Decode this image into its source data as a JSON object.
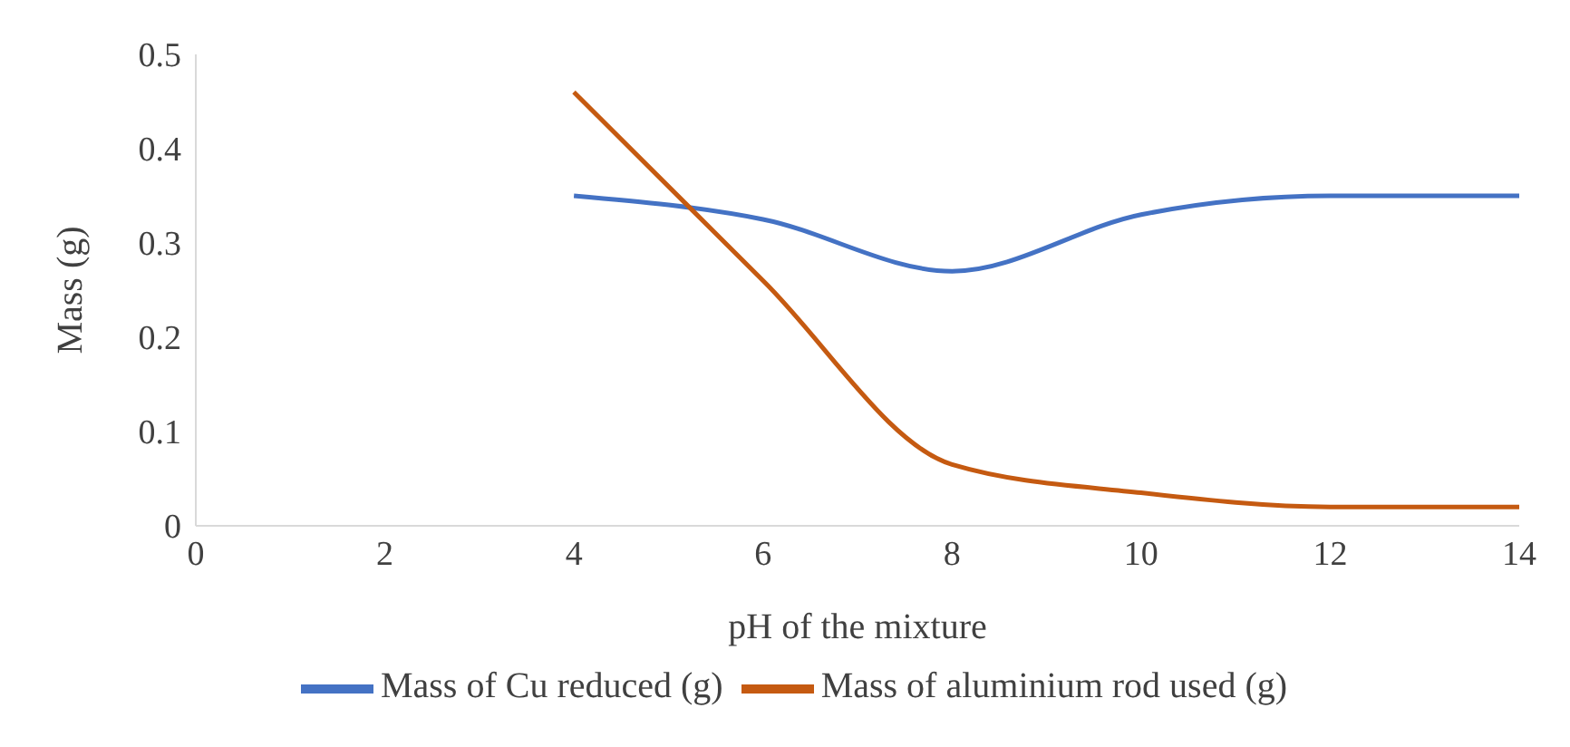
{
  "chart_data": {
    "type": "line",
    "xlabel": "pH of the mixture",
    "ylabel": "Mass (g)",
    "x": [
      4,
      6,
      8,
      10,
      12,
      14
    ],
    "series": [
      {
        "name": "Mass of Cu reduced (g)",
        "color": "#4472c4",
        "values": [
          0.35,
          0.325,
          0.27,
          0.33,
          0.35,
          0.35
        ]
      },
      {
        "name": "Mass of aluminium rod used (g)",
        "color": "#c55a11",
        "values": [
          0.46,
          0.26,
          0.065,
          0.035,
          0.02,
          0.02
        ]
      }
    ],
    "xlim": [
      0,
      14
    ],
    "xticks": [
      0,
      2,
      4,
      6,
      8,
      10,
      12,
      14
    ],
    "ylim": [
      0,
      0.5
    ],
    "yticks": [
      0,
      0.1,
      0.2,
      0.3,
      0.4,
      0.5
    ],
    "grid": false,
    "legend": "bottom",
    "marker": "none",
    "line_style": "solid"
  }
}
